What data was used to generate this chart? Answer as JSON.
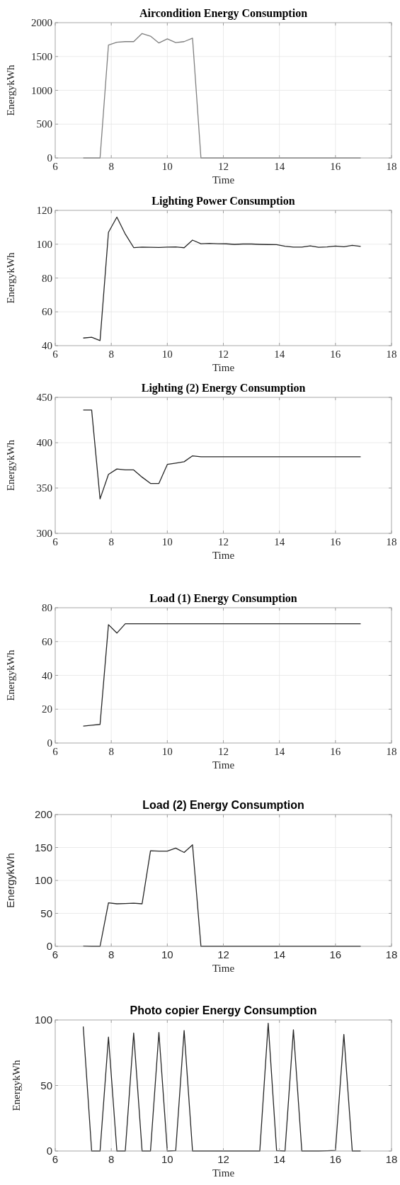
{
  "chart_data": [
    {
      "type": "line",
      "title": "Aircondition Energy Consumption",
      "xlabel": "Time",
      "ylabel": "EnergykWh",
      "xlim": [
        6,
        18
      ],
      "xticks": [
        6,
        8,
        10,
        12,
        14,
        16,
        18
      ],
      "ylim": [
        0,
        2000
      ],
      "yticks": [
        0,
        500,
        1000,
        1500,
        2000
      ],
      "grid": true,
      "x": [
        7,
        7.3,
        7.6,
        7.9,
        8.2,
        8.5,
        8.8,
        9.1,
        9.4,
        9.7,
        10,
        10.3,
        10.6,
        10.9,
        11.2,
        11.5,
        11.8,
        12.1,
        12.4,
        12.7,
        13,
        13.3,
        13.6,
        13.9,
        14.2,
        14.5,
        14.8,
        15.1,
        15.4,
        15.7,
        16,
        16.3,
        16.6,
        16.9
      ],
      "series": [
        {
          "color": "#7f7f7f",
          "values": [
            0,
            0,
            0,
            1670,
            1710,
            1720,
            1720,
            1840,
            1800,
            1700,
            1760,
            1705,
            1720,
            1770,
            0,
            0,
            0,
            0,
            0,
            0,
            0,
            0,
            0,
            0,
            0,
            0,
            0,
            0,
            0,
            0,
            0,
            0,
            0,
            0
          ]
        }
      ]
    },
    {
      "type": "line",
      "title": "Lighting Power Consumption",
      "xlabel": "Time",
      "ylabel": "EnergykWh",
      "xlim": [
        6,
        18
      ],
      "xticks": [
        6,
        8,
        10,
        12,
        14,
        16,
        18
      ],
      "ylim": [
        40,
        120
      ],
      "yticks": [
        40,
        60,
        80,
        100,
        120
      ],
      "grid": true,
      "x": [
        7,
        7.3,
        7.6,
        7.9,
        8.2,
        8.5,
        8.8,
        9.1,
        9.4,
        9.7,
        10,
        10.3,
        10.6,
        10.9,
        11.2,
        11.5,
        11.8,
        12.1,
        12.4,
        12.7,
        13,
        13.3,
        13.6,
        13.9,
        14.2,
        14.5,
        14.8,
        15.1,
        15.4,
        15.7,
        16,
        16.3,
        16.6,
        16.9
      ],
      "series": [
        {
          "color": "#262626",
          "values": [
            44.5,
            45,
            43,
            107,
            116,
            106,
            98,
            98.3,
            98.2,
            98.1,
            98.3,
            98.4,
            97.9,
            102.4,
            100.3,
            100.5,
            100.3,
            100.2,
            99.9,
            100.1,
            100.1,
            99.9,
            99.8,
            99.7,
            98.8,
            98.3,
            98.3,
            99,
            98.2,
            98.4,
            98.9,
            98.5,
            99.3,
            98.7
          ]
        }
      ]
    },
    {
      "type": "line",
      "title": "Lighting (2) Energy Consumption",
      "xlabel": "Time",
      "ylabel": "EnergykWh",
      "xlim": [
        6,
        18
      ],
      "xticks": [
        6,
        8,
        10,
        12,
        14,
        16,
        18
      ],
      "ylim": [
        300,
        450
      ],
      "yticks": [
        300,
        350,
        400,
        450
      ],
      "grid": true,
      "x": [
        7,
        7.3,
        7.6,
        7.9,
        8.2,
        8.5,
        8.8,
        9.1,
        9.4,
        9.7,
        10,
        10.3,
        10.6,
        10.9,
        11.2,
        11.5,
        11.8,
        12.1,
        12.4,
        12.7,
        13,
        13.3,
        13.6,
        13.9,
        14.2,
        14.5,
        14.8,
        15.1,
        15.4,
        15.7,
        16,
        16.3,
        16.6,
        16.9
      ],
      "series": [
        {
          "color": "#262626",
          "values": [
            436,
            436,
            338,
            365,
            371,
            370,
            370,
            362,
            355,
            355,
            376,
            377.5,
            379,
            385.5,
            384.5,
            384.5,
            384.5,
            384.5,
            384.5,
            384.5,
            384.5,
            384.5,
            384.5,
            384.5,
            384.5,
            384.5,
            384.5,
            384.5,
            384.5,
            384.5,
            384.5,
            384.5,
            384.5,
            384.5
          ]
        }
      ]
    },
    {
      "type": "line",
      "title": "Load (1) Energy Consumption",
      "xlabel": "Time",
      "ylabel": "EnergykWh",
      "xlim": [
        6,
        18
      ],
      "xticks": [
        6,
        8,
        10,
        12,
        14,
        16,
        18
      ],
      "ylim": [
        0,
        80
      ],
      "yticks": [
        0,
        20,
        40,
        60,
        80
      ],
      "grid": true,
      "x": [
        7,
        7.3,
        7.6,
        7.9,
        8.2,
        8.5,
        8.8,
        9.1,
        9.4,
        9.7,
        10,
        10.3,
        10.6,
        10.9,
        11.2,
        11.5,
        11.8,
        12.1,
        12.4,
        12.7,
        13,
        13.3,
        13.6,
        13.9,
        14.2,
        14.5,
        14.8,
        15.1,
        15.4,
        15.7,
        16,
        16.3,
        16.6,
        16.9
      ],
      "series": [
        {
          "color": "#262626",
          "values": [
            10,
            10.5,
            11,
            70,
            65,
            70.5,
            70.5,
            70.5,
            70.5,
            70.5,
            70.5,
            70.5,
            70.5,
            70.5,
            70.5,
            70.5,
            70.5,
            70.5,
            70.5,
            70.5,
            70.5,
            70.5,
            70.5,
            70.5,
            70.5,
            70.5,
            70.5,
            70.5,
            70.5,
            70.5,
            70.5,
            70.5,
            70.5,
            70.5
          ]
        }
      ]
    },
    {
      "type": "line",
      "title": "Load (2) Energy Consumption",
      "xlabel": "Time",
      "ylabel": "EnergykWh",
      "xlim": [
        6,
        18
      ],
      "xticks": [
        6,
        8,
        10,
        12,
        14,
        16,
        18
      ],
      "ylim": [
        0,
        200
      ],
      "yticks": [
        0,
        50,
        100,
        150,
        200
      ],
      "grid": true,
      "x": [
        7,
        7.3,
        7.6,
        7.9,
        8.2,
        8.5,
        8.8,
        9.1,
        9.4,
        9.7,
        10,
        10.3,
        10.6,
        10.9,
        11.2,
        11.5,
        11.8,
        12.1,
        12.4,
        12.7,
        13,
        13.3,
        13.6,
        13.9,
        14.2,
        14.5,
        14.8,
        15.1,
        15.4,
        15.7,
        16,
        16.3,
        16.6,
        16.9
      ],
      "series": [
        {
          "color": "#262626",
          "values": [
            0.5,
            0,
            0,
            66,
            64.5,
            65,
            65.5,
            64.5,
            145,
            144.5,
            144.5,
            149,
            142.5,
            154,
            0,
            0,
            0,
            0,
            0,
            0,
            0,
            0,
            0,
            0,
            0,
            0,
            0,
            0,
            0,
            0,
            0,
            0,
            0,
            0
          ]
        }
      ]
    },
    {
      "type": "line",
      "title": "Photo copier Energy Consumption",
      "xlabel": "Time",
      "ylabel": "EnergykWh",
      "xlim": [
        6,
        18
      ],
      "xticks": [
        6,
        8,
        10,
        12,
        14,
        16,
        18
      ],
      "ylim": [
        0,
        100
      ],
      "yticks": [
        0,
        50,
        100
      ],
      "grid": true,
      "x": [
        7,
        7.3,
        7.6,
        7.9,
        8.2,
        8.5,
        8.8,
        9.1,
        9.4,
        9.7,
        10,
        10.3,
        10.6,
        10.9,
        11.2,
        11.5,
        11.8,
        12.1,
        12.4,
        12.7,
        13,
        13.3,
        13.6,
        13.9,
        14.2,
        14.5,
        14.8,
        15.1,
        15.4,
        15.7,
        16,
        16.3,
        16.6,
        16.9
      ],
      "series": [
        {
          "color": "#262626",
          "values": [
            95,
            0,
            0,
            87,
            0,
            0,
            90,
            0,
            0,
            90.5,
            0,
            0.3,
            92,
            0,
            0,
            0,
            0,
            0,
            0,
            0,
            0,
            0,
            97.5,
            0.3,
            0,
            92.5,
            0,
            0,
            0,
            0.2,
            0.5,
            89,
            0,
            0
          ]
        }
      ]
    }
  ]
}
